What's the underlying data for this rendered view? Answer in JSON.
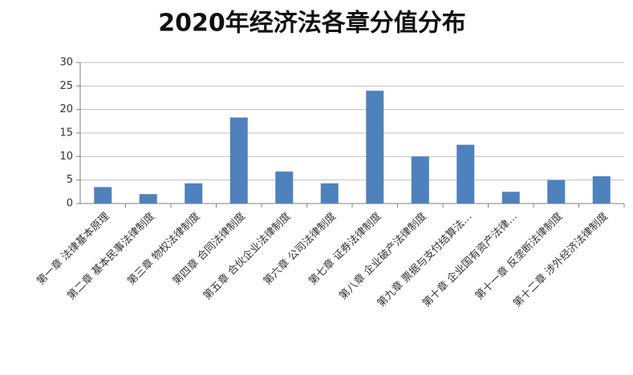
{
  "chart_data": {
    "type": "bar",
    "title": "2020年经济法各章分值分布",
    "categories": [
      "第一章 法律基本原理",
      "第二章 基本民事法律制度",
      "第三章 物权法律制度",
      "第四章 合同法律制度",
      "第五章 合伙企业法律制度",
      "第六章 公司法律制度",
      "第七章 证券法律制度",
      "第八章 企业破产法律制度",
      "第九章 票据与支付结算法…",
      "第十章 企业国有资产法律…",
      "第十一章 反垄断法律制度",
      "第十二章 涉外经济法律制度"
    ],
    "values": [
      3.5,
      2,
      4.3,
      18.3,
      6.8,
      4.3,
      24,
      10,
      12.5,
      2.5,
      5,
      5.8
    ],
    "color": "#4f81bd",
    "ylim": [
      0,
      30
    ],
    "yticks": [
      0,
      5,
      10,
      15,
      20,
      25,
      30
    ],
    "grid": true
  }
}
